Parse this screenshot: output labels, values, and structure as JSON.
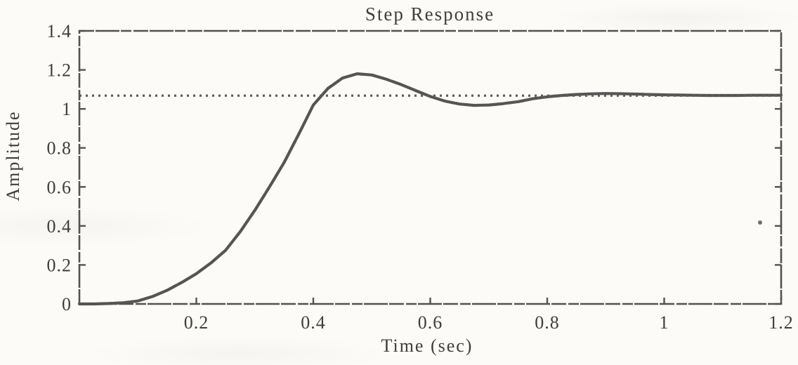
{
  "figure": {
    "background_color": "#fcfbf7",
    "ink_color": "#525252",
    "text_color": "#3e3e3e"
  },
  "chart_data": {
    "type": "line",
    "title": "Step Response",
    "xlabel": "Time (sec)",
    "ylabel": "Amplitude",
    "xlim": [
      0,
      1.2
    ],
    "ylim": [
      0,
      1.4
    ],
    "grid": false,
    "legend": null,
    "xticks": {
      "values": [
        0.2,
        0.4,
        0.6,
        0.8,
        1.0,
        1.2
      ],
      "labels": [
        "0.2",
        "0.4",
        "0.6",
        "0.8",
        "1",
        "1.2"
      ]
    },
    "yticks": {
      "values": [
        0,
        0.2,
        0.4,
        0.6,
        0.8,
        1.0,
        1.2,
        1.4
      ],
      "labels": [
        "0",
        "0.2",
        "0.4",
        "0.6",
        "0.8",
        "1",
        "1.2",
        "1.4"
      ]
    },
    "series": [
      {
        "name": "step-response-curve",
        "type": "line",
        "style": "solid",
        "color": "#555555",
        "x": [
          0.0,
          0.025,
          0.05,
          0.075,
          0.1,
          0.125,
          0.15,
          0.175,
          0.2,
          0.225,
          0.25,
          0.275,
          0.3,
          0.325,
          0.35,
          0.375,
          0.4,
          0.425,
          0.45,
          0.475,
          0.5,
          0.525,
          0.55,
          0.575,
          0.6,
          0.625,
          0.65,
          0.675,
          0.7,
          0.725,
          0.75,
          0.775,
          0.8,
          0.825,
          0.85,
          0.875,
          0.9,
          0.925,
          0.95,
          0.975,
          1.0,
          1.025,
          1.05,
          1.075,
          1.1,
          1.125,
          1.15,
          1.175,
          1.2
        ],
        "y": [
          0.0,
          0.0,
          0.002,
          0.006,
          0.015,
          0.038,
          0.07,
          0.11,
          0.155,
          0.21,
          0.275,
          0.37,
          0.48,
          0.6,
          0.725,
          0.87,
          1.02,
          1.105,
          1.158,
          1.18,
          1.174,
          1.152,
          1.125,
          1.094,
          1.064,
          1.04,
          1.025,
          1.018,
          1.02,
          1.027,
          1.037,
          1.052,
          1.062,
          1.069,
          1.074,
          1.077,
          1.079,
          1.078,
          1.076,
          1.074,
          1.072,
          1.071,
          1.07,
          1.069,
          1.069,
          1.069,
          1.07,
          1.07,
          1.07
        ]
      },
      {
        "name": "steady-state-line",
        "type": "hline",
        "style": "dotted",
        "color": "#5c5c5c",
        "value": 1.068
      }
    ],
    "key_points": {
      "peak": {
        "t": 0.475,
        "y": 1.18
      },
      "undershoot": {
        "t": 0.69,
        "y": 1.02
      },
      "final_value": 1.07
    }
  }
}
